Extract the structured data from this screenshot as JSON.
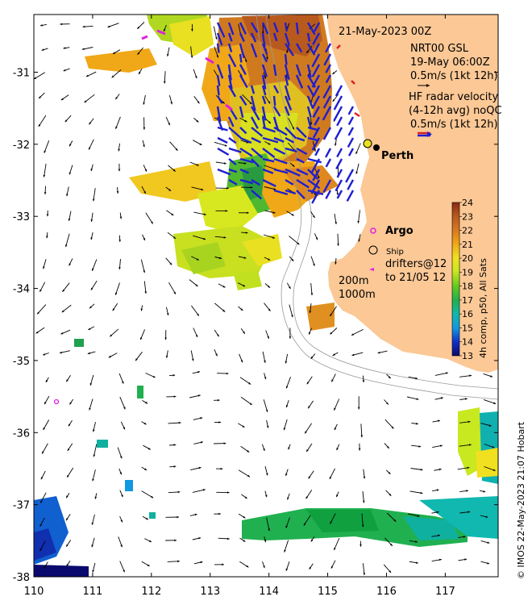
{
  "date_title": "21-May-2023 00Z",
  "nrt": {
    "line1": "NRT00 GSL",
    "line2": "19-May 06:00Z",
    "scale": "0.5m/s (1kt 12h)"
  },
  "hf": {
    "line1": "HF radar velocity",
    "line2": "(4-12h avg) noQC",
    "scale": "0.5m/s (1kt 12h)"
  },
  "places": {
    "perth": "Perth"
  },
  "legend": {
    "argo": "Argo",
    "ship": "Ship",
    "drifters1": "drifters@12",
    "drifters2": "to 21/05 12",
    "depth200": "200m",
    "depth1000": "1000m"
  },
  "colorbar": {
    "title": "4h comp, p50, All Sats",
    "min": 13,
    "max": 24,
    "ticks": [
      "24",
      "23",
      "22",
      "21",
      "20",
      "19",
      "18",
      "17",
      "16",
      "15",
      "14",
      "13"
    ]
  },
  "credit": "© IMOS 22-May-2023 21:07 Hobart",
  "axes": {
    "x_ticks": [
      "110",
      "111",
      "112",
      "113",
      "114",
      "115",
      "116",
      "117"
    ],
    "y_ticks": [
      "-31",
      "-32",
      "-33",
      "-34",
      "-35",
      "-36",
      "-37",
      "-38"
    ],
    "xlim": [
      110,
      117.9
    ],
    "ylim": [
      -38,
      -30.2
    ]
  },
  "colors": {
    "land": "#fbc896",
    "hf_arrow": "#1f1fd0",
    "drifter": "#e020e0"
  },
  "chart_data": {
    "type": "heatmap",
    "ticks_x": [
      "110",
      "111",
      "112",
      "113",
      "114",
      "115",
      "116",
      "117"
    ],
    "ticks_y": [
      "-31",
      "-32",
      "-33",
      "-34",
      "-35",
      "-36",
      "-37",
      "-38"
    ],
    "colorbar_range": [
      13,
      24
    ],
    "markers": [
      {
        "name": "Perth",
        "lon": 115.86,
        "lat": -31.95
      },
      {
        "name": "Argo",
        "lon": 110.4,
        "lat": -35.5
      }
    ]
  }
}
